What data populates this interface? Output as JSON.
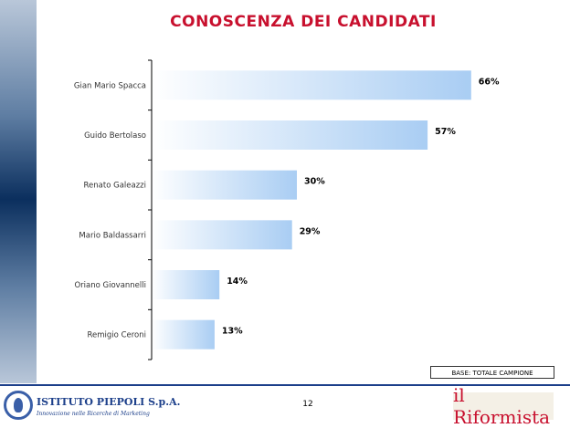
{
  "chart_data": {
    "type": "bar",
    "orientation": "horizontal",
    "title": "CONOSCENZA DEI CANDIDATI",
    "categories": [
      "Gian Mario Spacca",
      "Guido Bertolaso",
      "Renato Galeazzi",
      "Mario Baldassarri",
      "Oriano Giovannelli",
      "Remigio Ceroni"
    ],
    "values": [
      66,
      57,
      30,
      29,
      14,
      13
    ],
    "data_labels": [
      "66%",
      "57%",
      "30%",
      "29%",
      "14%",
      "13%"
    ],
    "value_unit": "%",
    "xlim": [
      0,
      100
    ],
    "grid": false,
    "legend": "none"
  },
  "note": "BASE: TOTALE CAMPIONE",
  "footer": {
    "page_number": "12",
    "left_logo": {
      "name": "ISTITUTO PIEPOLI S.p.A.",
      "tagline": "Innovazione nelle Ricerche di Marketing"
    },
    "right_logo": {
      "name": "il Riformista"
    }
  },
  "colors": {
    "title": "#c8102e",
    "bar_start": "#ffffff",
    "bar_end": "#a9cdf3",
    "axis": "#000000",
    "footer_rule": "#1c3f8a"
  }
}
